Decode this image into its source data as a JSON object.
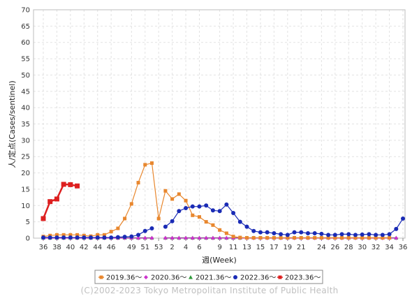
{
  "chart_data": {
    "type": "line",
    "xlabel": "週(Week)",
    "ylabel": "人/定点(Cases/sentinel)",
    "ylim": [
      0,
      70
    ],
    "yticks": [
      0,
      5,
      10,
      15,
      20,
      25,
      30,
      35,
      40,
      45,
      50,
      55,
      60,
      65,
      70
    ],
    "x_weeks": [
      "36",
      "37",
      "38",
      "39",
      "40",
      "41",
      "42",
      "43",
      "44",
      "45",
      "46",
      "47",
      "48",
      "49",
      "50",
      "51",
      "52",
      "53",
      "1",
      "2",
      "3",
      "4",
      "5",
      "6",
      "7",
      "8",
      "9",
      "10",
      "11",
      "12",
      "13",
      "14",
      "15",
      "16",
      "17",
      "18",
      "19",
      "20",
      "21",
      "22",
      "23",
      "24",
      "25",
      "26",
      "27",
      "28",
      "29",
      "30",
      "31",
      "32",
      "33",
      "34",
      "35",
      "36"
    ],
    "xtick_labels": [
      "36",
      "38",
      "40",
      "42",
      "44",
      "46",
      "49",
      "51",
      "53",
      "2",
      "4",
      "6",
      "9",
      "11",
      "13",
      "15",
      "17",
      "19",
      "21",
      "24",
      "26",
      "28",
      "30",
      "32",
      "34",
      "36"
    ],
    "grid": true,
    "legend_position": "bottom",
    "series": [
      {
        "name": "2019.36〜",
        "color": "#e8872e",
        "marker": "square",
        "values": [
          0.5,
          0.8,
          1,
          1,
          1,
          1,
          0.8,
          0.6,
          1,
          1,
          2,
          3,
          6,
          10.5,
          17,
          22.5,
          23,
          6,
          14.5,
          12,
          13.5,
          11.5,
          7,
          6.5,
          5,
          4,
          2.5,
          1.5,
          0.5,
          0.2,
          0.1,
          0.1,
          0.1,
          0.1,
          0.1,
          0.1,
          0.1,
          0.1,
          0.1,
          0.1,
          0.1,
          0.1,
          0.1,
          0.1,
          0.1,
          0.1,
          0.1,
          0.1,
          0.1,
          0.1,
          0.1,
          0.1,
          null,
          null
        ]
      },
      {
        "name": "2020.36〜",
        "color": "#cc33cc",
        "marker": "diamond",
        "values": [
          0,
          0,
          0,
          0,
          0,
          0,
          0,
          0,
          0,
          0,
          0,
          0,
          0,
          0,
          0,
          0,
          0,
          null,
          0,
          0,
          0,
          0,
          0,
          0,
          0,
          0,
          0,
          0,
          0,
          0,
          0,
          0,
          0,
          0,
          0,
          0,
          0,
          0,
          0,
          0,
          0,
          0,
          0,
          0,
          0,
          0,
          0,
          0,
          0,
          0,
          0,
          0,
          0,
          null
        ]
      },
      {
        "name": "2021.36〜",
        "color": "#2e9a3a",
        "marker": "triangle",
        "values": [
          0.1,
          0.1,
          0.1,
          0.1,
          0.1,
          0.1,
          0.1,
          0.1,
          0.1,
          0.1,
          0.1,
          0.1,
          0.1,
          0.1,
          0.1,
          0.1,
          0.1,
          null,
          0.1,
          0.1,
          0.1,
          0.1,
          0.1,
          0.1,
          0.1,
          0.1,
          0.1,
          0.1,
          0.1,
          0.1,
          0.1,
          0.1,
          0.1,
          0.1,
          0.1,
          0.1,
          0.1,
          0.1,
          0.1,
          0.1,
          0.1,
          0.1,
          0.1,
          0.1,
          0.1,
          0.1,
          0.1,
          0.1,
          0.1,
          0.1,
          0.1,
          0.1,
          0.1,
          null
        ]
      },
      {
        "name": "2022.36〜",
        "color": "#1a2bb5",
        "marker": "circle",
        "values": [
          0.2,
          0.2,
          0.2,
          0.2,
          0.2,
          0.2,
          0.2,
          0.2,
          0.2,
          0.2,
          0.2,
          0.3,
          0.4,
          0.5,
          1,
          2.2,
          3,
          null,
          3.5,
          5.2,
          8.3,
          9.2,
          9.7,
          9.7,
          10,
          8.5,
          8.3,
          10.3,
          7.7,
          5,
          3.5,
          2.2,
          1.8,
          1.8,
          1.5,
          1.2,
          1,
          1.8,
          1.8,
          1.5,
          1.5,
          1.3,
          1,
          1,
          1.2,
          1.2,
          1,
          1.1,
          1.2,
          1,
          1,
          1.2,
          2.8,
          6
        ]
      },
      {
        "name": "2023.36〜",
        "color": "#dd1f1f",
        "marker": "bigsquare",
        "values": [
          6,
          11.2,
          12,
          16.5,
          16.4,
          16,
          null,
          null,
          null,
          null,
          null,
          null,
          null,
          null,
          null,
          null,
          null,
          null,
          null,
          null,
          null,
          null,
          null,
          null,
          null,
          null,
          null,
          null,
          null,
          null,
          null,
          null,
          null,
          null,
          null,
          null,
          null,
          null,
          null,
          null,
          null,
          null,
          null,
          null,
          null,
          null,
          null,
          null,
          null,
          null,
          null,
          null,
          null,
          null
        ]
      }
    ]
  },
  "copyright": "(C)2002-2023 Tokyo Metropolitan Institute of Public Health"
}
